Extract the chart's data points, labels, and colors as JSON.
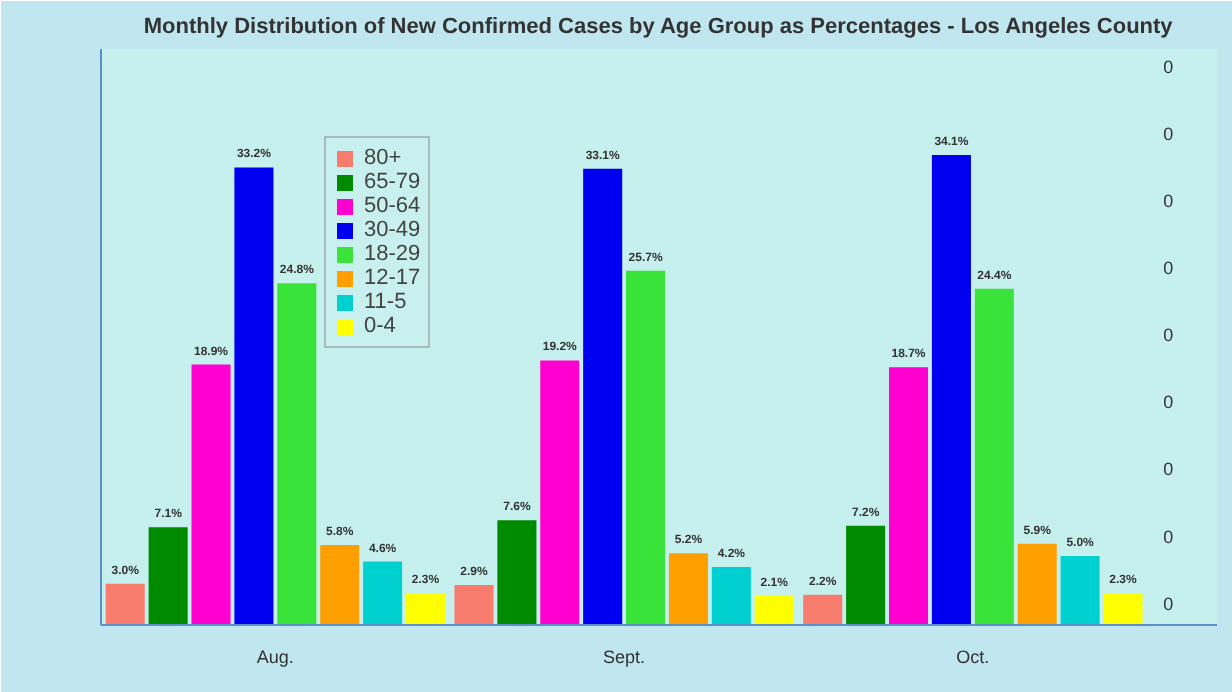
{
  "chart_data": {
    "type": "bar",
    "title": "Monthly Distribution of New Confirmed Cases by Age Group as Percentages - Los Angeles County",
    "categories": [
      "Aug.",
      "Sept.",
      "Oct."
    ],
    "series": [
      {
        "name": "80+",
        "color": "#f87c6e",
        "values": [
          3.0,
          2.9,
          2.2
        ],
        "value_labels": [
          "3.0%",
          "2.9%",
          "2.2%"
        ]
      },
      {
        "name": "65-79",
        "color": "#008a00",
        "values": [
          7.1,
          7.6,
          7.2
        ],
        "value_labels": [
          "7.1%",
          "7.6%",
          "7.2%"
        ]
      },
      {
        "name": "50-64",
        "color": "#ff00d0",
        "values": [
          18.9,
          19.2,
          18.7
        ],
        "value_labels": [
          "18.9%",
          "19.2%",
          "18.7%"
        ]
      },
      {
        "name": "30-49",
        "color": "#0000f0",
        "values": [
          33.2,
          33.1,
          34.1
        ],
        "value_labels": [
          "33.2%",
          "33.1%",
          "34.1%"
        ]
      },
      {
        "name": "18-29",
        "color": "#3ae33a",
        "values": [
          24.8,
          25.7,
          24.4
        ],
        "value_labels": [
          "24.8%",
          "25.7%",
          "24.4%"
        ]
      },
      {
        "name": "12-17",
        "color": "#ffa000",
        "values": [
          5.8,
          5.2,
          5.9
        ],
        "value_labels": [
          "5.8%",
          "5.2%",
          "5.9%"
        ]
      },
      {
        "name": "11-5",
        "color": "#00d0d0",
        "values": [
          4.6,
          4.2,
          5.0
        ],
        "value_labels": [
          "4.6%",
          "4.2%",
          "5.0%"
        ]
      },
      {
        "name": "0-4",
        "color": "#ffff00",
        "values": [
          2.3,
          2.1,
          2.3
        ],
        "value_labels": [
          "2.3%",
          "2.1%",
          "2.3%"
        ]
      }
    ],
    "annotations": [
      "0",
      "0",
      "0",
      "0",
      "0",
      "0",
      "0",
      "0",
      "0"
    ],
    "legend": "top left"
  }
}
